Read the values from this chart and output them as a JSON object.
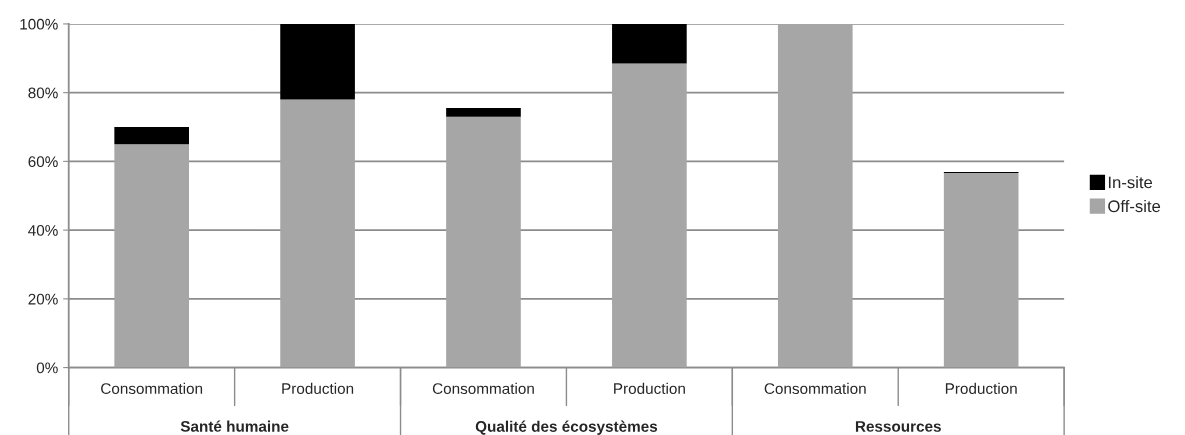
{
  "chart_data": {
    "type": "bar",
    "stacked": true,
    "categories": [
      "Consommation",
      "Production",
      "Consommation",
      "Production",
      "Consommation",
      "Production"
    ],
    "series": [
      {
        "name": "Off-site",
        "color": "#a6a6a6",
        "values": [
          65,
          78,
          73,
          88.5,
          100,
          56.6
        ]
      },
      {
        "name": "In-site",
        "color": "#000000",
        "values": [
          5,
          22,
          2.5,
          11.5,
          0,
          0.3
        ]
      }
    ],
    "ylim": [
      0,
      100
    ],
    "yticks": [
      {
        "value": 0,
        "label": "0%"
      },
      {
        "value": 20,
        "label": "20%"
      },
      {
        "value": 40,
        "label": "40%"
      },
      {
        "value": 60,
        "label": "60%"
      },
      {
        "value": 80,
        "label": "80%"
      },
      {
        "value": 100,
        "label": "100%"
      }
    ],
    "grid": "y",
    "legend": "right",
    "annotations": [
      "Santé humaine",
      "Qualité des écosystèmes",
      "Ressources"
    ]
  }
}
